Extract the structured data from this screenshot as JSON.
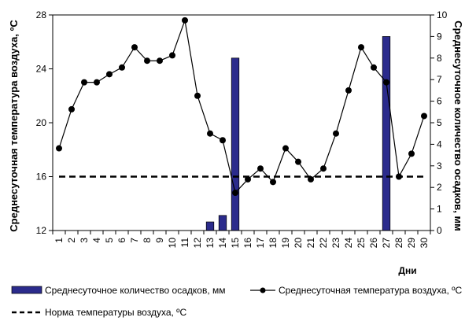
{
  "chart_data": {
    "type": "bar+line",
    "categories": [
      "1",
      "2",
      "3",
      "4",
      "5",
      "6",
      "7",
      "8",
      "9",
      "10",
      "11",
      "12",
      "13",
      "14",
      "15",
      "16",
      "17",
      "18",
      "19",
      "20",
      "21",
      "22",
      "23",
      "24",
      "25",
      "26",
      "27",
      "28",
      "29",
      "30"
    ],
    "series": [
      {
        "name": "Среднесуточное количество осадков, мм",
        "type": "bar",
        "axis": "right",
        "color": "#2b2b8c",
        "values": [
          0,
          0,
          0,
          0,
          0,
          0,
          0,
          0,
          0,
          0,
          0,
          0,
          0.4,
          0.7,
          8.0,
          0,
          0,
          0,
          0,
          0,
          0,
          0,
          0,
          0,
          0,
          0,
          9.0,
          0,
          0,
          0
        ]
      },
      {
        "name": "Среднесуточная температура воздуха, ºС",
        "type": "line",
        "axis": "left",
        "color": "#000000",
        "values": [
          18.1,
          21.0,
          23.0,
          23.0,
          23.6,
          24.1,
          25.6,
          24.6,
          24.6,
          25.0,
          27.6,
          22.0,
          19.2,
          18.7,
          14.8,
          15.8,
          16.6,
          15.6,
          18.1,
          17.1,
          15.8,
          16.6,
          19.2,
          22.4,
          25.6,
          24.1,
          23.0,
          16.0,
          17.7,
          20.5
        ]
      },
      {
        "name": "Норма температуры воздуха, ºС",
        "type": "line",
        "style": "dashed",
        "axis": "left",
        "color": "#000000",
        "values": [
          16,
          16,
          16,
          16,
          16,
          16,
          16,
          16,
          16,
          16,
          16,
          16,
          16,
          16,
          16,
          16,
          16,
          16,
          16,
          16,
          16,
          16,
          16,
          16,
          16,
          16,
          16,
          16,
          16,
          16
        ]
      }
    ],
    "y_left": {
      "label": "Среднесуточная температура воздуха, ºС",
      "lim": [
        12,
        28
      ],
      "ticks": [
        12,
        16,
        20,
        24,
        28
      ]
    },
    "y_right": {
      "label": "Среднесуточное количество осадков, мм",
      "lim": [
        0,
        10
      ],
      "ticks": [
        0,
        1,
        2,
        3,
        4,
        5,
        6,
        7,
        8,
        9,
        10
      ]
    },
    "xlabel": "Дни",
    "grid": false,
    "legend_position": "bottom"
  }
}
